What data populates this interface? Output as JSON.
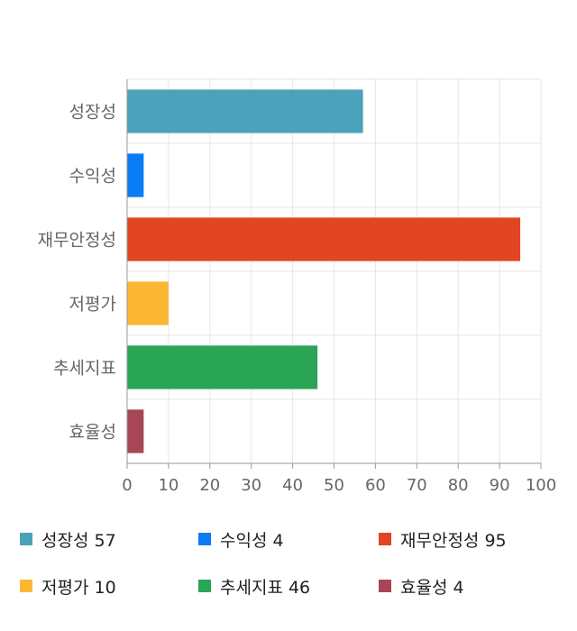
{
  "chart_data": {
    "type": "bar",
    "orientation": "horizontal",
    "categories": [
      "성장성",
      "수익성",
      "재무안정성",
      "저평가",
      "추세지표",
      "효율성"
    ],
    "values": [
      57,
      4,
      95,
      10,
      46,
      4
    ],
    "colors": [
      "#4aa3bb",
      "#0a7cf5",
      "#e24522",
      "#fbb733",
      "#2aa556",
      "#a84655"
    ],
    "xlim": [
      0,
      100
    ],
    "xticks": [
      0,
      10,
      20,
      30,
      40,
      50,
      60,
      70,
      80,
      90,
      100
    ],
    "grid": true,
    "legend_position": "bottom"
  },
  "legend": {
    "items": [
      {
        "label": "성장성 57",
        "color": "#4aa3bb"
      },
      {
        "label": "수익성 4",
        "color": "#0a7cf5"
      },
      {
        "label": "재무안정성 95",
        "color": "#e24522"
      },
      {
        "label": "저평가 10",
        "color": "#fbb733"
      },
      {
        "label": "추세지표 46",
        "color": "#2aa556"
      },
      {
        "label": "효율성 4",
        "color": "#a84655"
      }
    ]
  }
}
